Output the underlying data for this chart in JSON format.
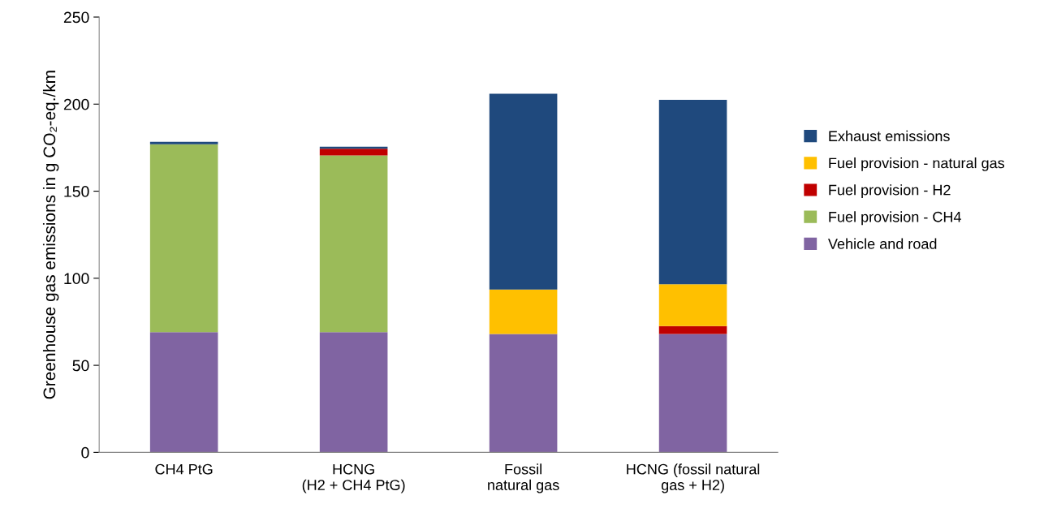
{
  "chart_data": {
    "type": "bar",
    "stacked": true,
    "ylabel": "Greenhouse gas emissions in g CO₂-eq./km",
    "categories": [
      "CH4 PtG",
      "HCNG\n(H2 + CH4 PtG)",
      "Fossil\nnatural gas",
      "HCNG (fossil natural\ngas + H2)"
    ],
    "series": [
      {
        "name": "Vehicle and road",
        "color": "#8064a2",
        "values": [
          69,
          69,
          68,
          68
        ]
      },
      {
        "name": "Fuel provision - CH4",
        "color": "#9bbb59",
        "values": [
          108,
          101.5,
          null,
          null
        ]
      },
      {
        "name": "Fuel provision - H2",
        "color": "#c00000",
        "values": [
          null,
          3.9,
          null,
          4.5
        ]
      },
      {
        "name": "Fuel provision - natural gas",
        "color": "#ffc000",
        "values": [
          null,
          null,
          25.5,
          24
        ]
      },
      {
        "name": "Exhaust emissions",
        "color": "#1f497d",
        "values": [
          1.4,
          1.2,
          112.5,
          106
        ]
      }
    ],
    "ylim": [
      0,
      250
    ],
    "yticks": [
      0,
      50,
      100,
      150,
      200,
      250
    ],
    "grid": false,
    "legend": "right"
  }
}
